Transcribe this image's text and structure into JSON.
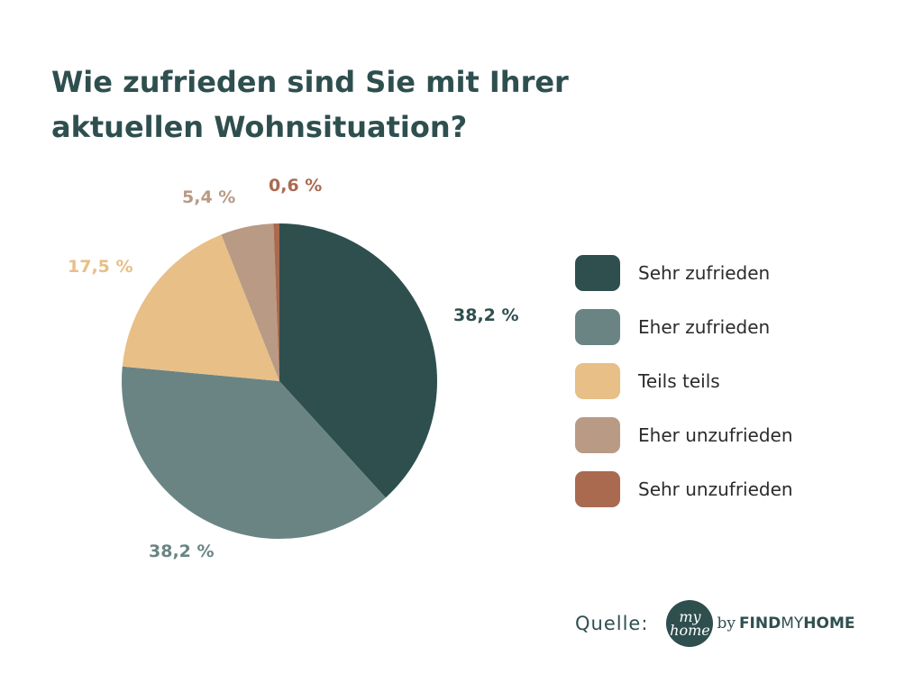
{
  "title_lines": [
    "Wie zufrieden sind Sie mit Ihrer",
    "aktuellen Wohnsituation?"
  ],
  "chart_data": {
    "type": "pie",
    "title": "Wie zufrieden sind Sie mit Ihrer aktuellen Wohnsituation?",
    "categories": [
      "Sehr zufrieden",
      "Eher zufrieden",
      "Teils teils",
      "Eher unzufrieden",
      "Sehr unzufrieden"
    ],
    "values": [
      38.2,
      38.2,
      17.5,
      5.4,
      0.6
    ],
    "value_labels": [
      "38,2 %",
      "38,2 %",
      "17,5 %",
      "5,4 %",
      "0,6 %"
    ],
    "colors": [
      "#2f4f4f",
      "#6a8484",
      "#e8bf87",
      "#b99a85",
      "#a96a50"
    ],
    "start_angle": "12 o'clock",
    "direction": "clockwise",
    "legend_position": "right"
  },
  "source": {
    "label": "Quelle:",
    "logo_top": "my",
    "logo_bottom": "home",
    "by": "by",
    "brand_bold_1": "FIND",
    "brand_light": "MY",
    "brand_bold_2": "HOME"
  }
}
